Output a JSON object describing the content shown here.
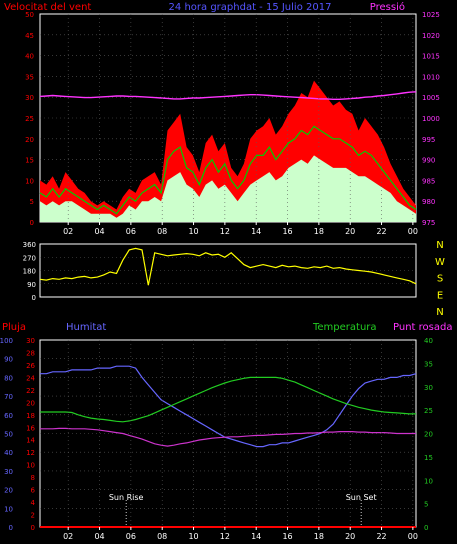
{
  "colors": {
    "background": "#000000",
    "axis": "#ffffff",
    "grid": "#5a5a5a",
    "wind_gust": "#ff0000",
    "wind_avg": "#00cc00",
    "wind_min": "#ccffcc",
    "pressure": "#ff33ff",
    "direction": "#ffff00",
    "rain": "#ff0000",
    "humidity": "#6666ff",
    "temperature": "#22cc22",
    "dewpoint": "#cc33cc"
  },
  "chart_data": [
    {
      "type": "line",
      "title": "24 hora graphdat - 15 Julio 2017",
      "left_label": "Velocitat del vent",
      "right_label": "Pressió",
      "x_ticks": [
        "02",
        "04",
        "06",
        "08",
        "10",
        "12",
        "14",
        "16",
        "18",
        "20",
        "22",
        "00"
      ],
      "grid": true,
      "ylim_left": [
        0,
        50
      ],
      "yticks_left": [
        "0",
        "5",
        "10",
        "15",
        "20",
        "25",
        "30",
        "35",
        "40",
        "45",
        "50"
      ],
      "ylim_right": [
        975,
        1025
      ],
      "yticks_right": [
        "975",
        "980",
        "985",
        "990",
        "995",
        "1000",
        "1005",
        "1010",
        "1015",
        "1020",
        "1025"
      ],
      "series": [
        {
          "key": "wind_gust",
          "color": "#ff0000",
          "axis": "left",
          "values": [
            10,
            9,
            11,
            8,
            12,
            10,
            8,
            7,
            5,
            4,
            5,
            4,
            3,
            6,
            8,
            7,
            10,
            11,
            12,
            9,
            22,
            24,
            26,
            18,
            16,
            12,
            19,
            21,
            17,
            19,
            13,
            11,
            14,
            20,
            22,
            23,
            25,
            21,
            23,
            26,
            28,
            31,
            30,
            34,
            32,
            30,
            28,
            29,
            27,
            26,
            22,
            25,
            23,
            21,
            18,
            14,
            11,
            8,
            6,
            4
          ]
        },
        {
          "key": "wind_avg",
          "color": "#00cc00",
          "axis": "left",
          "values": [
            7,
            6,
            8,
            6,
            8,
            7,
            6,
            5,
            4,
            3,
            4,
            3,
            2,
            4,
            6,
            5,
            7,
            8,
            9,
            7,
            15,
            17,
            18,
            13,
            12,
            9,
            13,
            15,
            12,
            14,
            10,
            8,
            10,
            14,
            16,
            16,
            18,
            15,
            17,
            19,
            20,
            22,
            21,
            23,
            22,
            21,
            20,
            20,
            19,
            18,
            16,
            17,
            16,
            14,
            12,
            10,
            8,
            6,
            4,
            3
          ]
        },
        {
          "key": "wind_min",
          "color": "#ccffcc",
          "axis": "left",
          "values": [
            5,
            4,
            5,
            4,
            5,
            5,
            4,
            3,
            2,
            2,
            2,
            2,
            1,
            2,
            4,
            3,
            5,
            5,
            6,
            5,
            10,
            11,
            12,
            9,
            8,
            6,
            9,
            10,
            8,
            9,
            7,
            5,
            7,
            9,
            10,
            11,
            12,
            10,
            11,
            13,
            14,
            15,
            14,
            16,
            15,
            14,
            13,
            13,
            13,
            12,
            11,
            11,
            10,
            9,
            8,
            7,
            5,
            4,
            3,
            2
          ]
        },
        {
          "key": "pressure",
          "color": "#ff33ff",
          "axis": "right",
          "values": [
            1005.2,
            1005.3,
            1005.4,
            1005.3,
            1005.2,
            1005.1,
            1005.0,
            1004.9,
            1004.9,
            1005.0,
            1005.1,
            1005.2,
            1005.3,
            1005.3,
            1005.2,
            1005.2,
            1005.1,
            1005.0,
            1004.9,
            1004.8,
            1004.7,
            1004.6,
            1004.6,
            1004.7,
            1004.8,
            1004.8,
            1004.9,
            1005.0,
            1005.1,
            1005.2,
            1005.3,
            1005.4,
            1005.5,
            1005.6,
            1005.6,
            1005.5,
            1005.4,
            1005.3,
            1005.2,
            1005.1,
            1005.0,
            1004.9,
            1004.8,
            1004.7,
            1004.6,
            1004.6,
            1004.5,
            1004.5,
            1004.6,
            1004.7,
            1004.8,
            1005.0,
            1005.1,
            1005.3,
            1005.4,
            1005.6,
            1005.8,
            1006.0,
            1006.2,
            1006.3
          ]
        }
      ]
    },
    {
      "type": "line",
      "x_ticks": [],
      "ylim": [
        0,
        360
      ],
      "yticks": [
        "0",
        "90",
        "180",
        "270",
        "360"
      ],
      "compass_labels": [
        "N",
        "W",
        "S",
        "E",
        "N"
      ],
      "grid": true,
      "series": [
        {
          "key": "direction",
          "color": "#ffff00",
          "values": [
            120,
            115,
            125,
            120,
            130,
            125,
            135,
            140,
            130,
            135,
            150,
            170,
            160,
            250,
            320,
            330,
            320,
            80,
            300,
            290,
            280,
            285,
            290,
            295,
            290,
            280,
            300,
            285,
            290,
            270,
            300,
            260,
            220,
            200,
            210,
            220,
            210,
            200,
            215,
            205,
            210,
            200,
            195,
            205,
            200,
            210,
            195,
            200,
            190,
            185,
            180,
            175,
            170,
            160,
            150,
            140,
            130,
            120,
            110,
            90
          ]
        }
      ]
    },
    {
      "type": "line",
      "labels": {
        "rain": "Pluja",
        "humidity": "Humitat",
        "temperature": "Temperatura",
        "dewpoint": "Punt rosada",
        "sunrise": "Sun Rise",
        "sunset": "Sun Set"
      },
      "x_ticks": [
        "02",
        "04",
        "06",
        "08",
        "10",
        "12",
        "14",
        "16",
        "18",
        "20",
        "22",
        "00"
      ],
      "grid": true,
      "ylim_humidity": [
        0,
        100
      ],
      "yticks_humidity": [
        "0",
        "10",
        "20",
        "30",
        "40",
        "50",
        "60",
        "70",
        "80",
        "90",
        "100"
      ],
      "ylim_rain": [
        0,
        30
      ],
      "yticks_rain": [
        "0",
        "2",
        "4",
        "6",
        "8",
        "10",
        "12",
        "14",
        "16",
        "18",
        "20",
        "22",
        "24",
        "26",
        "28",
        "30"
      ],
      "ylim_temp": [
        0,
        40
      ],
      "yticks_temp": [
        "0",
        "5",
        "10",
        "15",
        "20",
        "25",
        "30",
        "35",
        "40"
      ],
      "sunrise_hour": 6.5,
      "sunset_hour": 21.5,
      "series": [
        {
          "key": "humidity",
          "color": "#6666ff",
          "axis": "humidity",
          "values": [
            82,
            82,
            83,
            83,
            83,
            84,
            84,
            84,
            84,
            85,
            85,
            85,
            86,
            86,
            86,
            85,
            80,
            76,
            72,
            68,
            66,
            64,
            62,
            60,
            58,
            56,
            54,
            52,
            50,
            48,
            47,
            46,
            45,
            44,
            43,
            43,
            44,
            44,
            45,
            45,
            46,
            47,
            48,
            49,
            50,
            52,
            55,
            60,
            65,
            70,
            74,
            77,
            78,
            79,
            79,
            80,
            80,
            81,
            81,
            82
          ]
        },
        {
          "key": "rain",
          "color": "#ff0000",
          "axis": "rain",
          "values": [
            0,
            0,
            0,
            0,
            0,
            0,
            0,
            0,
            0,
            0,
            0,
            0,
            0,
            0,
            0,
            0,
            0,
            0,
            0,
            0,
            0,
            0,
            0,
            0,
            0,
            0,
            0,
            0,
            0,
            0,
            0,
            0,
            0,
            0,
            0,
            0,
            0,
            0,
            0,
            0,
            0,
            0,
            0,
            0,
            0,
            0,
            0,
            0,
            0,
            0,
            0,
            0,
            0,
            0,
            0,
            0,
            0,
            0,
            0,
            0
          ]
        },
        {
          "key": "temperature",
          "color": "#22cc22",
          "axis": "temp",
          "values": [
            24.6,
            24.6,
            24.6,
            24.6,
            24.6,
            24.5,
            24.0,
            23.6,
            23.3,
            23.1,
            23.0,
            22.8,
            22.6,
            22.5,
            22.7,
            23.0,
            23.4,
            23.8,
            24.4,
            25.0,
            25.6,
            26.2,
            26.8,
            27.4,
            28.0,
            28.6,
            29.2,
            29.8,
            30.3,
            30.8,
            31.2,
            31.5,
            31.8,
            32.0,
            32.0,
            32.0,
            32.0,
            32.0,
            31.8,
            31.4,
            31.0,
            30.4,
            29.8,
            29.2,
            28.6,
            28.0,
            27.4,
            26.9,
            26.4,
            26.0,
            25.6,
            25.3,
            25.0,
            24.8,
            24.6,
            24.5,
            24.4,
            24.3,
            24.2,
            24.2
          ]
        },
        {
          "key": "dewpoint",
          "color": "#cc33cc",
          "axis": "temp",
          "values": [
            21.0,
            21.0,
            21.0,
            21.1,
            21.1,
            21.0,
            21.0,
            21.0,
            20.9,
            20.8,
            20.6,
            20.4,
            20.2,
            20.0,
            19.6,
            19.2,
            18.8,
            18.3,
            17.8,
            17.5,
            17.3,
            17.5,
            17.8,
            18.0,
            18.3,
            18.6,
            18.8,
            19.0,
            19.1,
            19.2,
            19.3,
            19.3,
            19.4,
            19.5,
            19.6,
            19.6,
            19.7,
            19.8,
            19.8,
            19.9,
            20.0,
            20.0,
            20.1,
            20.1,
            20.2,
            20.3,
            20.3,
            20.4,
            20.4,
            20.4,
            20.3,
            20.3,
            20.2,
            20.2,
            20.2,
            20.1,
            20.0,
            20.0,
            20.0,
            20.0
          ]
        }
      ]
    }
  ]
}
